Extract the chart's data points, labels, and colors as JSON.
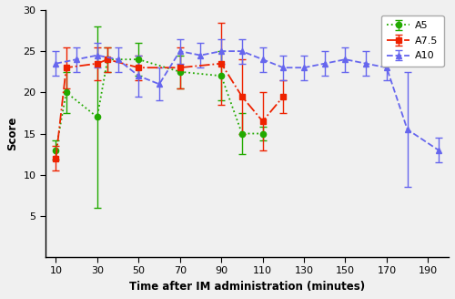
{
  "title": "",
  "xlabel": "Time after IM administration (minutes)",
  "ylabel": "Score",
  "xlim": [
    5,
    200
  ],
  "ylim": [
    0,
    30
  ],
  "xticks": [
    10,
    30,
    50,
    70,
    90,
    110,
    130,
    150,
    170,
    190
  ],
  "yticks": [
    5,
    10,
    15,
    20,
    25,
    30
  ],
  "A5": {
    "x": [
      10,
      15,
      30,
      35,
      50,
      70,
      90,
      100,
      110
    ],
    "y": [
      13.0,
      20.0,
      17.0,
      24.0,
      24.0,
      22.5,
      22.0,
      15.0,
      15.0
    ],
    "yerr": [
      1.2,
      2.5,
      11.0,
      1.5,
      2.0,
      2.0,
      3.0,
      2.5,
      0.8
    ],
    "color": "#22aa00",
    "label": "A5",
    "marker": "o",
    "linestyle": ":"
  },
  "A7.5": {
    "x": [
      10,
      15,
      30,
      35,
      50,
      70,
      90,
      100,
      110,
      120
    ],
    "y": [
      12.0,
      23.0,
      23.5,
      24.0,
      23.0,
      23.0,
      23.5,
      19.5,
      16.5,
      19.5
    ],
    "yerr": [
      1.5,
      2.5,
      2.0,
      1.5,
      1.5,
      2.5,
      5.0,
      4.5,
      3.5,
      2.0
    ],
    "color": "#ee2200",
    "label": "A7.5",
    "marker": "s",
    "linestyle": "-."
  },
  "A10": {
    "x": [
      10,
      20,
      30,
      40,
      50,
      60,
      70,
      80,
      90,
      100,
      110,
      120,
      130,
      140,
      150,
      160,
      170,
      180,
      195
    ],
    "y": [
      23.5,
      24.0,
      24.5,
      24.0,
      22.0,
      21.0,
      25.0,
      24.5,
      25.0,
      25.0,
      24.0,
      23.0,
      23.0,
      23.5,
      24.0,
      23.5,
      23.0,
      15.5,
      13.0
    ],
    "yerr": [
      1.5,
      1.5,
      1.5,
      1.5,
      2.5,
      2.0,
      1.5,
      1.5,
      1.5,
      1.5,
      1.5,
      1.5,
      1.5,
      1.5,
      1.5,
      1.5,
      1.5,
      7.0,
      1.5
    ],
    "color": "#6666ee",
    "label": "A10",
    "marker": "^",
    "linestyle": "--"
  },
  "bg_color": "#f0f0f0",
  "plot_bg": "#f0f0f0",
  "figsize": [
    5.0,
    3.28
  ],
  "dpi": 100
}
